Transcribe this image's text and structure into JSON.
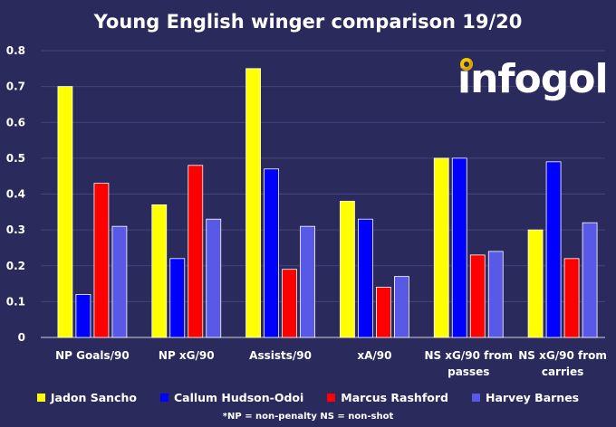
{
  "chart_data": {
    "type": "bar",
    "title": "Young English winger comparison 19/20",
    "categories": [
      [
        "NP Goals/90"
      ],
      [
        "NP xG/90"
      ],
      [
        "Assists/90"
      ],
      [
        "xA/90"
      ],
      [
        "NS xG/90 from",
        "passes"
      ],
      [
        "NS xG/90 from",
        "carries"
      ]
    ],
    "series": [
      {
        "name": "Jadon Sancho",
        "color": "#ffff00",
        "values": [
          0.7,
          0.37,
          0.75,
          0.38,
          0.5,
          0.3
        ]
      },
      {
        "name": "Callum Hudson-Odoi",
        "color": "#0000ff",
        "values": [
          0.12,
          0.22,
          0.47,
          0.33,
          0.5,
          0.49
        ]
      },
      {
        "name": "Marcus Rashford",
        "color": "#ff0000",
        "values": [
          0.43,
          0.48,
          0.19,
          0.14,
          0.23,
          0.22
        ]
      },
      {
        "name": "Harvey Barnes",
        "color": "#5959e8",
        "values": [
          0.31,
          0.33,
          0.31,
          0.17,
          0.24,
          0.32
        ]
      }
    ],
    "ylim": [
      0,
      0.8
    ],
    "yticks": [
      "0",
      "0.1",
      "0.2",
      "0.3",
      "0.4",
      "0.5",
      "0.6",
      "0.7",
      "0.8"
    ],
    "grid": true,
    "legend_position": "bottom"
  },
  "logo": {
    "text": "infogol"
  },
  "footnote": "*NP = non-penalty  NS = non-shot"
}
